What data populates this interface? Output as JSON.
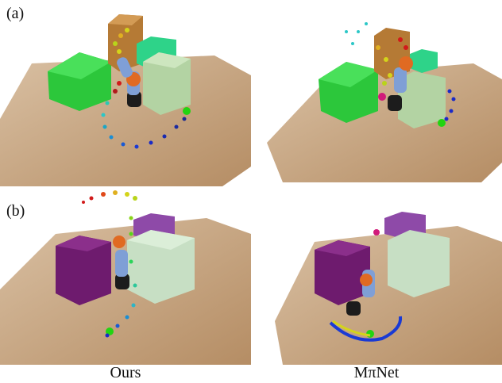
{
  "rows": [
    {
      "label": "(a)"
    },
    {
      "label": "(b)"
    }
  ],
  "captions": {
    "ours": "Ours",
    "mpinet": "MπNet"
  },
  "colors": {
    "table": "#c8a682",
    "robot_link": "#7f9fd6",
    "robot_joint": "#e06a22",
    "robot_base": "#1c1c1c",
    "box_green": "#2fcf3f",
    "box_teal": "#33d68a",
    "box_brown": "#c48a3f",
    "box_pale": "#b9d6a9",
    "box_purple": "#7a1f7a",
    "box_lilac": "#8e4aa8",
    "box_mint": "#c7dfc4",
    "goal_green": "#22d411",
    "goal_magenta": "#d11a7a"
  }
}
